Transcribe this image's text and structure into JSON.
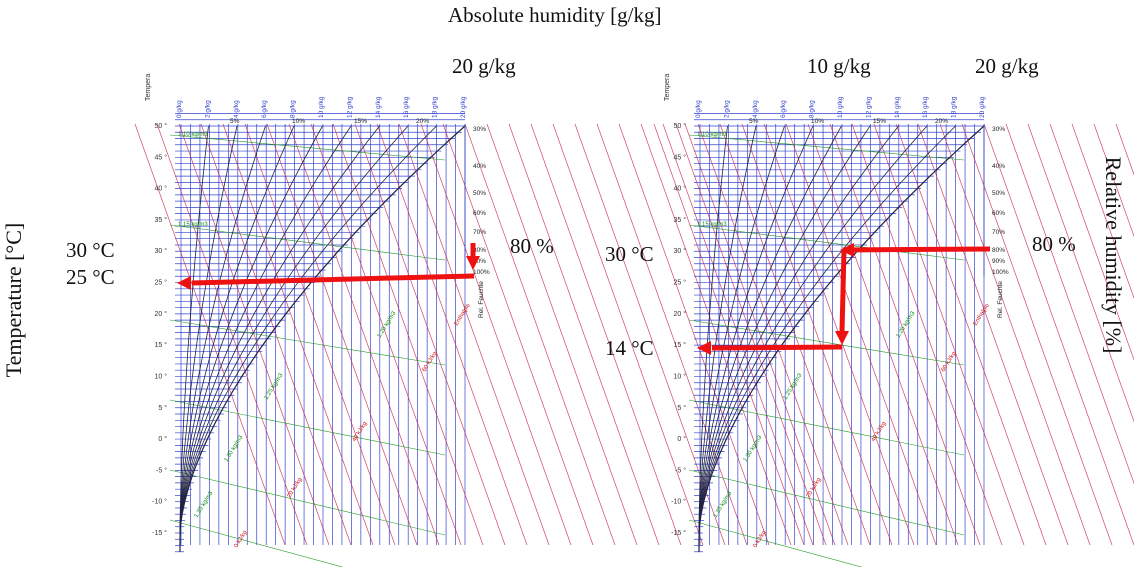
{
  "header": {
    "top_label": "Absolute humidity [g/kg]"
  },
  "side_labels": {
    "left": "Temperature [°C]",
    "right": "Relative humidity [%]"
  },
  "colors": {
    "arrow": "#ee1111",
    "isotherm": "#3344cc",
    "humidity": "#222244",
    "enthalpy": "#cc2255",
    "volume": "#229922"
  },
  "charts": [
    {
      "annotations": {
        "abs_top": "20 g/kg",
        "temp_high": "30 °C",
        "temp_low": "25 °C",
        "rh": "80 %"
      },
      "process": {
        "description_points": [
          {
            "T": 30,
            "rh": 80
          },
          {
            "T": 25,
            "rh": 100
          }
        ]
      }
    },
    {
      "annotations": {
        "abs_mid": "10 g/kg",
        "abs_top": "20 g/kg",
        "temp_high": "30 °C",
        "temp_low": "14 °C",
        "rh": "80 %"
      }
    }
  ],
  "chart_axes": {
    "temp_ticks": [
      "50 °",
      "45 °",
      "40 °",
      "35 °",
      "30 °",
      "25 °",
      "20 °",
      "15 °",
      "10 °",
      "5 °",
      "0 °",
      "-5 °",
      "-10 °",
      "-15 °"
    ],
    "abs_ticks": [
      "0 g/kg",
      "2 g/kg",
      "4 g/kg",
      "6 g/kg",
      "8 g/kg",
      "10 g/kg",
      "12 g/kg",
      "14 g/kg",
      "16 g/kg",
      "18 g/kg",
      "20 g/kg"
    ],
    "rh_top": [
      "5%",
      "10%",
      "15%",
      "20%"
    ],
    "rh_right": [
      "30%",
      "40%",
      "50%",
      "60%",
      "70%",
      "80%",
      "90%",
      "100%"
    ],
    "rh_axis_label": "Rel. Feuchte",
    "volume_labels": [
      "1.10 kg/m3",
      "1.15 kg/m3",
      "1.20 kg/m3",
      "1.25 kg/m3",
      "1.30 kg/m3",
      "1.35 kg/m3"
    ],
    "enthalpy_labels": [
      "Enthalpie",
      "60 kJ/kg",
      "40 kJ/kg",
      "20 kJ/kg",
      "0 kJ/kg"
    ],
    "corner_label": "Tempera"
  }
}
